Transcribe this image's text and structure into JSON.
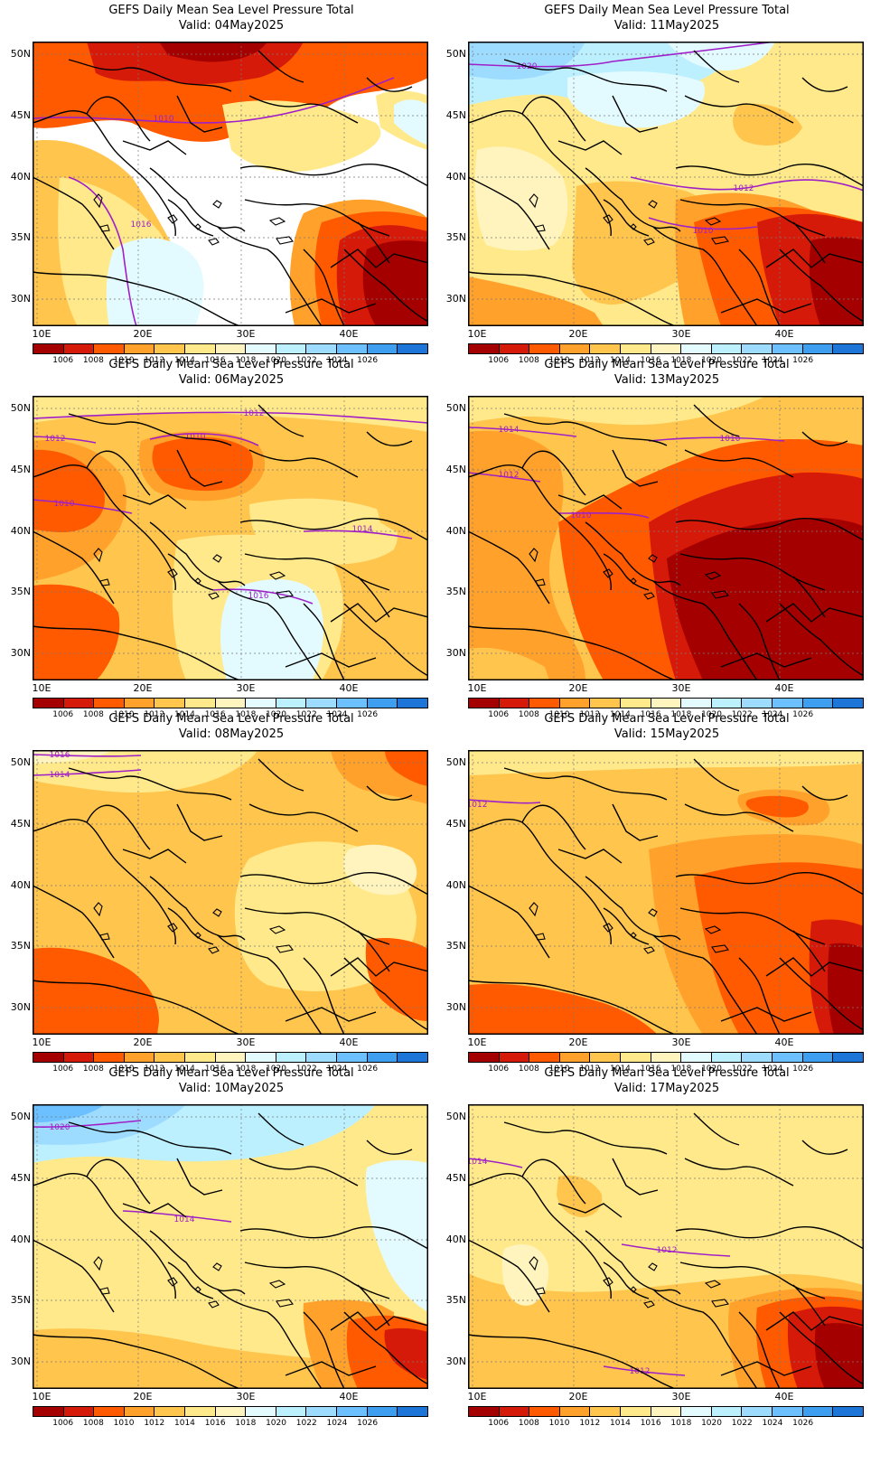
{
  "colorbar": {
    "colors": [
      "#a50000",
      "#d61a0a",
      "#ff5a00",
      "#ffa12a",
      "#ffc54d",
      "#ffe98a",
      "#fff4be",
      "#e3fbff",
      "#bdf0ff",
      "#9edcff",
      "#6cc0ff",
      "#3e9ef0",
      "#1d75d8"
    ],
    "labels": [
      "1006",
      "1008",
      "1010",
      "1012",
      "1014",
      "1016",
      "1018",
      "1020",
      "1022",
      "1024",
      "1026"
    ]
  },
  "axes": {
    "lat_labels": [
      "50N",
      "45N",
      "40N",
      "35N",
      "30N"
    ],
    "lon_labels": [
      "10E",
      "20E",
      "30E",
      "40E"
    ]
  },
  "panels": [
    {
      "title": "GEFS Daily Mean Sea Level Pressure Total",
      "valid": "Valid: 04May2025",
      "isobars": [
        "1010",
        "1016"
      ]
    },
    {
      "title": "GEFS Daily Mean Sea Level Pressure Total",
      "valid": "Valid: 11May2025",
      "isobars": [
        "1020",
        "1012",
        "1010"
      ]
    },
    {
      "title": "GEFS Daily Mean Sea Level Pressure Total",
      "valid": "Valid: 06May2025",
      "isobars": [
        "1012",
        "1012",
        "1010",
        "1010",
        "1014",
        "1016"
      ]
    },
    {
      "title": "GEFS Daily Mean Sea Level Pressure Total",
      "valid": "Valid: 13May2025",
      "isobars": [
        "1014",
        "1010",
        "1012",
        "1010"
      ]
    },
    {
      "title": "GEFS Daily Mean Sea Level Pressure Total",
      "valid": "Valid: 08May2025",
      "isobars": [
        "1016",
        "1014"
      ]
    },
    {
      "title": "GEFS Daily Mean Sea Level Pressure Total",
      "valid": "Valid: 15May2025",
      "isobars": [
        "1012"
      ]
    },
    {
      "title": "GEFS Daily Mean Sea Level Pressure Total",
      "valid": "Valid: 10May2025",
      "isobars": [
        "1020",
        "1014"
      ]
    },
    {
      "title": "GEFS Daily Mean Sea Level Pressure Total",
      "valid": "Valid: 17May2025",
      "isobars": [
        "1014",
        "1012",
        "1012"
      ]
    }
  ]
}
